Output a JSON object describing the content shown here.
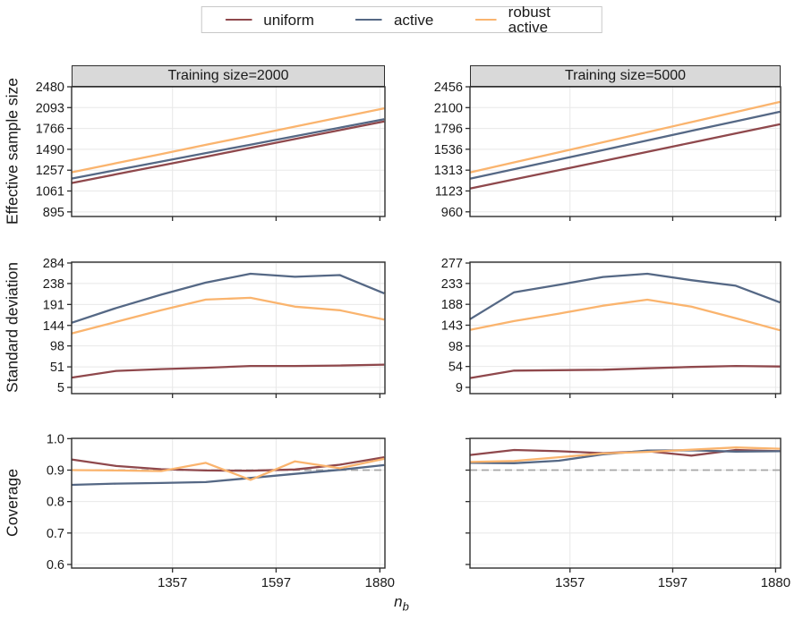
{
  "legend": {
    "items": [
      {
        "label": "uniform",
        "color": "#8F484C"
      },
      {
        "label": "active",
        "color": "#556885"
      },
      {
        "label": "robust active",
        "color": "#FAB46E"
      }
    ]
  },
  "axes": {
    "row_titles": [
      "Effective sample size",
      "Standard deviation",
      "Coverage"
    ],
    "x_title": "n",
    "x_title_sub": "b"
  },
  "chart_data": {
    "type": "line",
    "x_axis": {
      "scale": "log",
      "lim": [
        1158,
        1895
      ],
      "ticks": [
        {
          "value": 1357,
          "label": "1357"
        },
        {
          "value": 1597,
          "label": "1597"
        },
        {
          "value": 1880,
          "label": "1880"
        }
      ],
      "points": [
        1158,
        1242,
        1333,
        1430,
        1534,
        1645,
        1765,
        1893
      ]
    },
    "panels": [
      {
        "id": "ess-2000",
        "facet": "Training size=2000",
        "y_axis": "Effective sample size",
        "y_scale": "log",
        "ylim": [
          862,
          2480
        ],
        "y_ticks": [
          {
            "value": 2480,
            "label": "2480"
          },
          {
            "value": 2093,
            "label": "2093"
          },
          {
            "value": 1766,
            "label": "1766"
          },
          {
            "value": 1490,
            "label": "1490"
          },
          {
            "value": 1257,
            "label": "1257"
          },
          {
            "value": 1061,
            "label": "1061"
          },
          {
            "value": 895,
            "label": "895"
          }
        ],
        "series": [
          {
            "name": "uniform",
            "values": [
              1132,
              1216,
              1306,
              1403,
              1508,
              1620,
              1741,
              1870
            ]
          },
          {
            "name": "active",
            "values": [
              1174,
              1258,
              1348,
              1445,
              1548,
              1659,
              1778,
              1905
            ]
          },
          {
            "name": "robust active",
            "values": [
              1236,
              1331,
              1434,
              1545,
              1664,
              1793,
              1931,
              2080
            ]
          }
        ]
      },
      {
        "id": "ess-5000",
        "facet": "Training size=5000",
        "y_axis": "Effective sample size",
        "y_scale": "log",
        "ylim": [
          927,
          2456
        ],
        "y_ticks": [
          {
            "value": 2456,
            "label": "2456"
          },
          {
            "value": 2100,
            "label": "2100"
          },
          {
            "value": 1796,
            "label": "1796"
          },
          {
            "value": 1536,
            "label": "1536"
          },
          {
            "value": 1313,
            "label": "1313"
          },
          {
            "value": 1123,
            "label": "1123"
          },
          {
            "value": 960,
            "label": "960"
          }
        ],
        "series": [
          {
            "name": "uniform",
            "values": [
              1143,
              1225,
              1312,
              1406,
              1507,
              1614,
              1730,
              1853
            ]
          },
          {
            "name": "active",
            "values": [
              1231,
              1323,
              1421,
              1527,
              1641,
              1763,
              1895,
              2036
            ]
          },
          {
            "name": "robust active",
            "values": [
              1290,
              1392,
              1501,
              1619,
              1747,
              1884,
              2032,
              2192
            ]
          }
        ]
      },
      {
        "id": "sd-2000",
        "facet": "Training size=2000",
        "y_axis": "Standard deviation",
        "y_scale": "linear",
        "ylim": [
          -9,
          286
        ],
        "y_ticks": [
          {
            "value": 284,
            "label": "284"
          },
          {
            "value": 238,
            "label": "238"
          },
          {
            "value": 191,
            "label": "191"
          },
          {
            "value": 144,
            "label": "144"
          },
          {
            "value": 98,
            "label": "98"
          },
          {
            "value": 51,
            "label": "51"
          },
          {
            "value": 5,
            "label": "5"
          }
        ],
        "series": [
          {
            "name": "uniform",
            "values": [
              27,
              42,
              46,
              49,
              53,
              53,
              54,
              56
            ]
          },
          {
            "name": "active",
            "values": [
              150,
              183,
              213,
              240,
              260,
              253,
              257,
              216
            ]
          },
          {
            "name": "robust active",
            "values": [
              126,
              152,
              178,
              202,
              206,
              186,
              178,
              157
            ]
          }
        ]
      },
      {
        "id": "sd-5000",
        "facet": "Training size=5000",
        "y_axis": "Standard deviation",
        "y_scale": "linear",
        "ylim": [
          -4.5,
          279
        ],
        "y_ticks": [
          {
            "value": 277,
            "label": "277"
          },
          {
            "value": 233,
            "label": "233"
          },
          {
            "value": 188,
            "label": "188"
          },
          {
            "value": 143,
            "label": "143"
          },
          {
            "value": 98,
            "label": "98"
          },
          {
            "value": 54,
            "label": "54"
          },
          {
            "value": 9,
            "label": "9"
          }
        ],
        "series": [
          {
            "name": "uniform",
            "values": [
              29,
              45,
              46,
              47,
              50,
              53,
              55,
              54
            ]
          },
          {
            "name": "active",
            "values": [
              156,
              214,
              230,
              247,
              254,
              240,
              228,
              192
            ]
          },
          {
            "name": "robust active",
            "values": [
              133,
              152,
              168,
              185,
              198,
              183,
              158,
              132
            ]
          }
        ]
      },
      {
        "id": "coverage-2000",
        "facet": "Training size=2000",
        "y_axis": "Coverage",
        "y_scale": "linear",
        "ylim": [
          0.5886,
          1.001
        ],
        "ref_line": 0.9,
        "y_ticks": [
          {
            "value": 1.0,
            "label": "1.0"
          },
          {
            "value": 0.9,
            "label": "0.9"
          },
          {
            "value": 0.8,
            "label": "0.8"
          },
          {
            "value": 0.7,
            "label": "0.7"
          },
          {
            "value": 0.6,
            "label": "0.6"
          }
        ],
        "series": [
          {
            "name": "uniform",
            "values": [
              0.934,
              0.913,
              0.903,
              0.899,
              0.898,
              0.902,
              0.917,
              0.941
            ]
          },
          {
            "name": "active",
            "values": [
              0.853,
              0.857,
              0.859,
              0.862,
              0.875,
              0.888,
              0.901,
              0.916
            ]
          },
          {
            "name": "robust active",
            "values": [
              0.9,
              0.899,
              0.897,
              0.923,
              0.869,
              0.928,
              0.906,
              0.936
            ]
          }
        ]
      },
      {
        "id": "coverage-5000",
        "facet": "Training size=5000",
        "y_axis": "Coverage",
        "y_scale": "linear",
        "ylim": [
          0.5886,
          1.001
        ],
        "ref_line": 0.9,
        "y_ticks": [
          {
            "value": 1.0,
            "label": "1.0"
          },
          {
            "value": 0.9,
            "label": "0.9"
          },
          {
            "value": 0.8,
            "label": "0.8"
          },
          {
            "value": 0.7,
            "label": "0.7"
          },
          {
            "value": 0.6,
            "label": "0.6"
          }
        ],
        "series": [
          {
            "name": "uniform",
            "values": [
              0.948,
              0.964,
              0.96,
              0.954,
              0.96,
              0.946,
              0.964,
              0.96
            ]
          },
          {
            "name": "active",
            "values": [
              0.923,
              0.922,
              0.93,
              0.95,
              0.962,
              0.963,
              0.959,
              0.96
            ]
          },
          {
            "name": "robust active",
            "values": [
              0.926,
              0.929,
              0.941,
              0.953,
              0.958,
              0.965,
              0.972,
              0.968
            ]
          }
        ]
      }
    ]
  }
}
